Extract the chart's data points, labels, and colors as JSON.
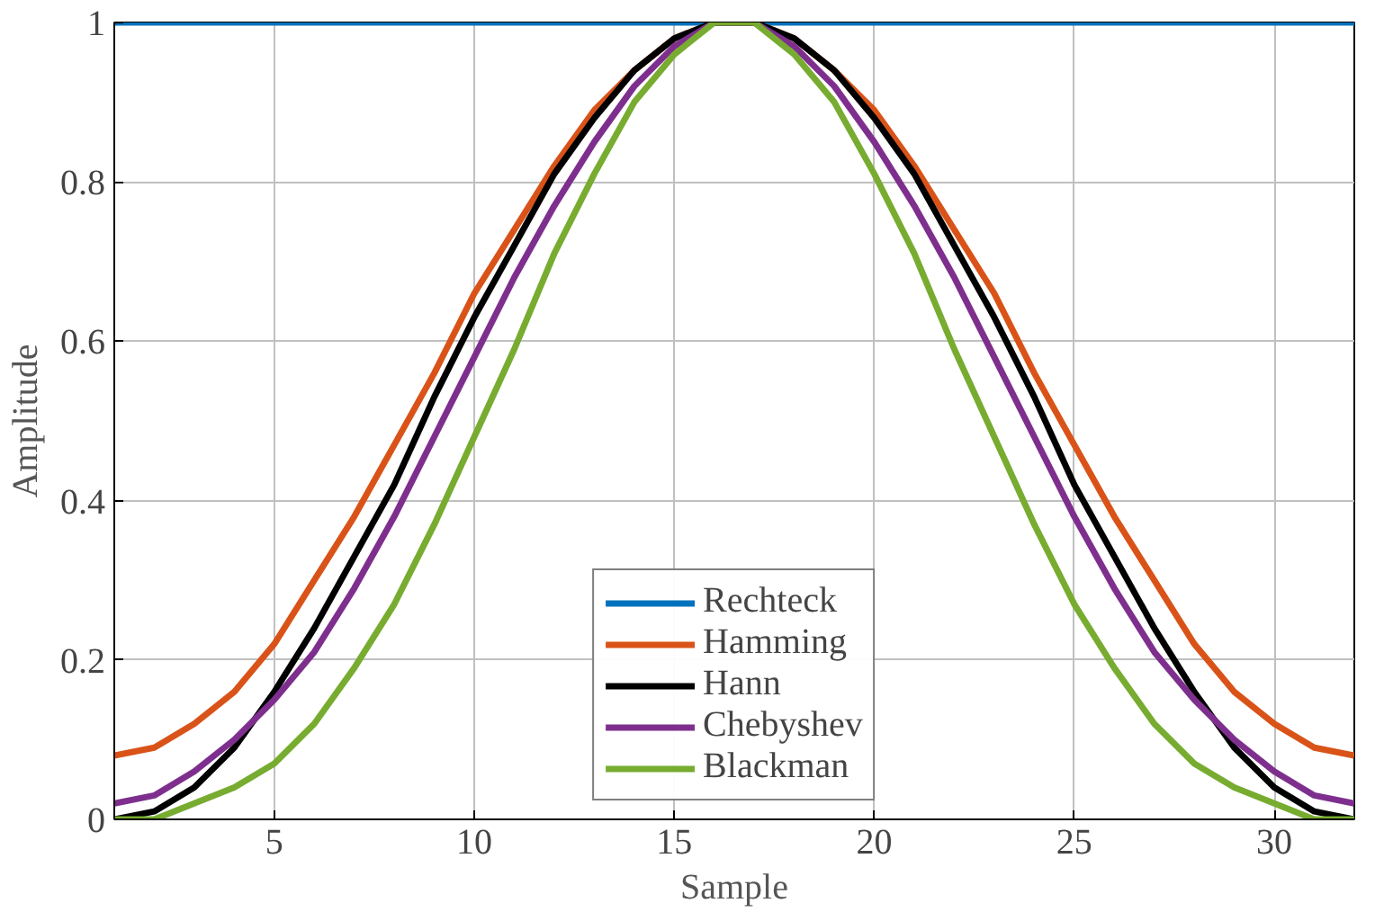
{
  "chart_data": {
    "type": "line",
    "xlabel": "Sample",
    "ylabel": "Amplitude",
    "x": [
      1,
      2,
      3,
      4,
      5,
      6,
      7,
      8,
      9,
      10,
      11,
      12,
      13,
      14,
      15,
      16,
      17,
      18,
      19,
      20,
      21,
      22,
      23,
      24,
      25,
      26,
      27,
      28,
      29,
      30,
      31,
      32
    ],
    "series": [
      {
        "name": "Rechteck",
        "color": "#0072bd",
        "values": [
          1,
          1,
          1,
          1,
          1,
          1,
          1,
          1,
          1,
          1,
          1,
          1,
          1,
          1,
          1,
          1,
          1,
          1,
          1,
          1,
          1,
          1,
          1,
          1,
          1,
          1,
          1,
          1,
          1,
          1,
          1,
          1
        ]
      },
      {
        "name": "Hamming",
        "color": "#d95319",
        "values": [
          0.08,
          0.09,
          0.12,
          0.16,
          0.22,
          0.3,
          0.38,
          0.47,
          0.56,
          0.66,
          0.74,
          0.82,
          0.89,
          0.94,
          0.98,
          1.0,
          1.0,
          0.98,
          0.94,
          0.89,
          0.82,
          0.74,
          0.66,
          0.56,
          0.47,
          0.38,
          0.3,
          0.22,
          0.16,
          0.12,
          0.09,
          0.08
        ]
      },
      {
        "name": "Hann",
        "color": "#000000",
        "values": [
          0,
          0.01,
          0.04,
          0.09,
          0.16,
          0.24,
          0.33,
          0.42,
          0.53,
          0.63,
          0.72,
          0.81,
          0.88,
          0.94,
          0.98,
          1.0,
          1.0,
          0.98,
          0.94,
          0.88,
          0.81,
          0.72,
          0.63,
          0.53,
          0.42,
          0.33,
          0.24,
          0.16,
          0.09,
          0.04,
          0.01,
          0
        ]
      },
      {
        "name": "Chebyshev",
        "color": "#7e2f8e",
        "values": [
          0.02,
          0.03,
          0.06,
          0.1,
          0.15,
          0.21,
          0.29,
          0.38,
          0.48,
          0.58,
          0.68,
          0.77,
          0.85,
          0.92,
          0.97,
          1.0,
          1.0,
          0.97,
          0.92,
          0.85,
          0.77,
          0.68,
          0.58,
          0.48,
          0.38,
          0.29,
          0.21,
          0.15,
          0.1,
          0.06,
          0.03,
          0.02
        ]
      },
      {
        "name": "Blackman",
        "color": "#77ac30",
        "values": [
          0,
          0,
          0.02,
          0.04,
          0.07,
          0.12,
          0.19,
          0.27,
          0.37,
          0.48,
          0.59,
          0.71,
          0.81,
          0.9,
          0.96,
          1.0,
          1.0,
          0.96,
          0.9,
          0.81,
          0.71,
          0.59,
          0.48,
          0.37,
          0.27,
          0.19,
          0.12,
          0.07,
          0.04,
          0.02,
          0,
          0
        ]
      }
    ],
    "xlim": [
      1,
      32
    ],
    "xticks": [
      5,
      10,
      15,
      20,
      25,
      30
    ],
    "ylim": [
      0,
      1
    ],
    "yticks": [
      0,
      0.2,
      0.4,
      0.6,
      0.8,
      1
    ],
    "grid": true,
    "legend": "bottom",
    "line_style": "solid"
  }
}
